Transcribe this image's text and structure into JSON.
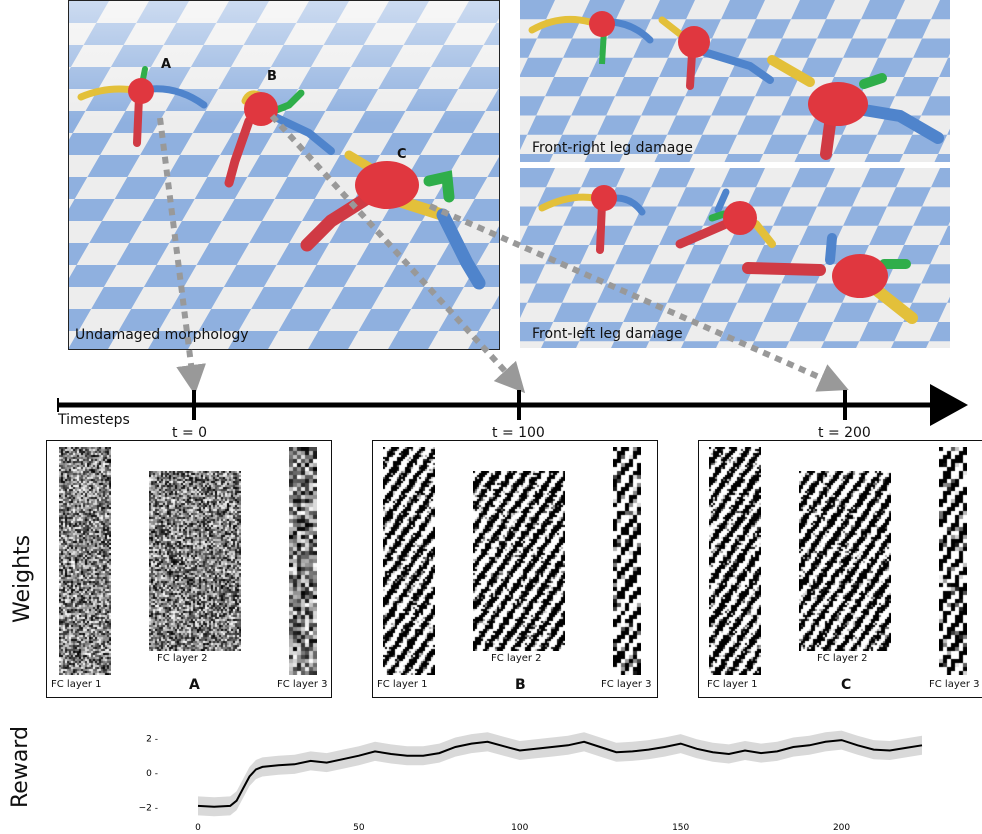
{
  "scenes": {
    "undamaged": {
      "caption": "Undamaged morphology",
      "labels": [
        "A",
        "B",
        "C"
      ]
    },
    "front_right": {
      "caption": "Front-right leg damage"
    },
    "front_left": {
      "caption": "Front-left leg damage"
    }
  },
  "timeline": {
    "axis_label": "Timesteps",
    "ticks": [
      "t = 0",
      "t = 100",
      "t = 200"
    ]
  },
  "weights": {
    "side_label": "Weights",
    "panels": [
      {
        "id": "A",
        "layers": [
          "FC layer 1",
          "FC layer 2",
          "FC layer 3"
        ],
        "letter": "A"
      },
      {
        "id": "B",
        "layers": [
          "FC layer 1",
          "FC layer 2",
          "FC layer 3"
        ],
        "letter": "B"
      },
      {
        "id": "C",
        "layers": [
          "FC layer 1",
          "FC layer 2",
          "FC layer 3"
        ],
        "letter": "C"
      }
    ]
  },
  "colors": {
    "floor_blue": "#8fb0df",
    "floor_white": "#ededed",
    "body_red": "#e0373f",
    "leg_yellow": "#e3c03a",
    "leg_blue": "#4f84cc",
    "joint_green": "#2fae4a",
    "arrow_gray": "#999999",
    "reward_line": "#000000",
    "reward_band": "#d9d9d9"
  },
  "reward": {
    "side_label": "Reward",
    "chart_data": {
      "type": "line",
      "x_ticks": [
        0,
        50,
        100,
        150,
        200
      ],
      "y_ticks": [
        "2",
        "0",
        "−2"
      ],
      "y_tick_values": [
        2,
        0,
        -2
      ],
      "xlim": [
        0,
        225
      ],
      "ylim": [
        -2.6,
        2.6
      ],
      "grid": false,
      "series": [
        {
          "x": [
            0,
            5,
            10,
            12,
            14,
            16,
            18,
            20,
            25,
            30,
            35,
            40,
            45,
            50,
            55,
            60,
            65,
            70,
            75,
            80,
            85,
            90,
            95,
            100,
            105,
            110,
            115,
            120,
            125,
            130,
            135,
            140,
            145,
            150,
            155,
            160,
            165,
            170,
            175,
            180,
            185,
            190,
            195,
            200,
            205,
            210,
            215,
            220,
            225
          ],
          "y": [
            -1.9,
            -1.95,
            -1.9,
            -1.6,
            -0.9,
            -0.2,
            0.2,
            0.35,
            0.45,
            0.5,
            0.7,
            0.6,
            0.8,
            1.0,
            1.25,
            1.1,
            1.0,
            1.0,
            1.15,
            1.5,
            1.7,
            1.8,
            1.55,
            1.3,
            1.4,
            1.5,
            1.6,
            1.8,
            1.5,
            1.2,
            1.25,
            1.35,
            1.5,
            1.7,
            1.4,
            1.2,
            1.1,
            1.3,
            1.15,
            1.25,
            1.5,
            1.6,
            1.8,
            1.9,
            1.6,
            1.35,
            1.3,
            1.45,
            1.6
          ],
          "band": 0.55
        }
      ]
    }
  }
}
